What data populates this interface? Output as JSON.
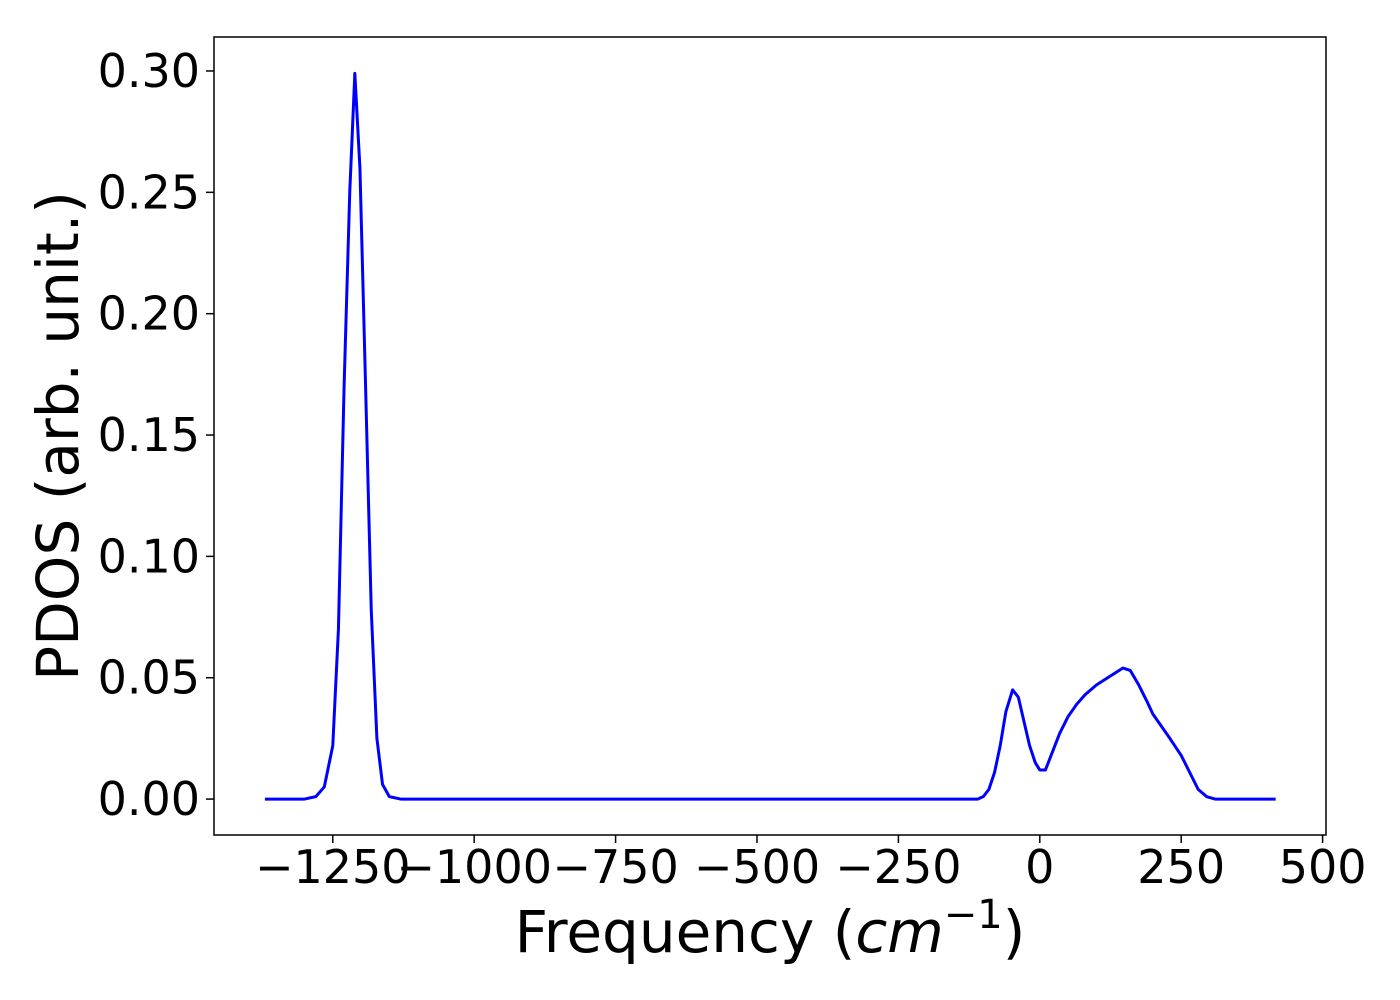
{
  "chart_data": {
    "type": "line",
    "xlabel": [
      "Frequency (",
      "cm",
      "−1",
      ")"
    ],
    "ylabel": "PDOS (arb. unit.)",
    "x": [
      -1370,
      -1300,
      -1280,
      -1265,
      -1250,
      -1240,
      -1230,
      -1220,
      -1211,
      -1202,
      -1192,
      -1182,
      -1172,
      -1162,
      -1150,
      -1130,
      -110,
      -100,
      -90,
      -80,
      -70,
      -60,
      -48,
      -38,
      -28,
      -18,
      -8,
      0,
      10,
      20,
      35,
      50,
      65,
      80,
      100,
      120,
      147,
      160,
      175,
      190,
      200,
      215,
      230,
      250,
      265,
      280,
      295,
      310,
      417
    ],
    "series": [
      {
        "color": "#0000ff",
        "values": [
          0,
          0,
          0.001,
          0.005,
          0.022,
          0.07,
          0.17,
          0.25,
          0.299,
          0.26,
          0.17,
          0.078,
          0.025,
          0.006,
          0.001,
          0,
          0,
          0.001,
          0.004,
          0.011,
          0.022,
          0.036,
          0.045,
          0.042,
          0.032,
          0.022,
          0.015,
          0.012,
          0.012,
          0.018,
          0.027,
          0.034,
          0.039,
          0.043,
          0.047,
          0.05,
          0.054,
          0.053,
          0.047,
          0.04,
          0.035,
          0.03,
          0.025,
          0.018,
          0.011,
          0.004,
          0.001,
          0,
          0
        ]
      }
    ],
    "xlim": [
      -1460,
      506
    ],
    "ylim": [
      -0.0148,
      0.314
    ],
    "xticks": [
      {
        "value": -1250,
        "label": "−1250"
      },
      {
        "value": -1000,
        "label": "−1000"
      },
      {
        "value": -750,
        "label": "−750"
      },
      {
        "value": -500,
        "label": "−500"
      },
      {
        "value": -250,
        "label": "−250"
      },
      0,
      250,
      500
    ],
    "yticks": [
      {
        "value": 0,
        "label": "0.00"
      },
      0.05,
      {
        "value": 0.1,
        "label": "0.10"
      },
      0.15,
      {
        "value": 0.2,
        "label": "0.20"
      },
      0.25,
      {
        "value": 0.3,
        "label": "0.30"
      }
    ],
    "grid": false
  }
}
